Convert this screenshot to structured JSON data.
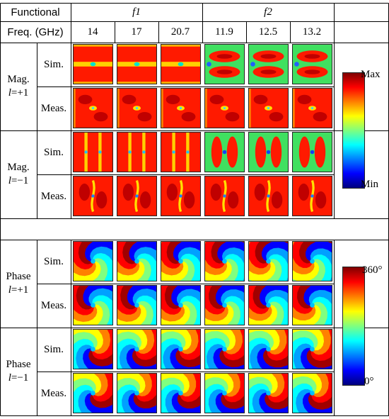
{
  "header": {
    "functional_label": "Functional",
    "freq_label": "Freq. (GHz)",
    "groups": [
      "f1",
      "f2"
    ],
    "frequencies": [
      "14",
      "17",
      "20.7",
      "11.9",
      "12.5",
      "13.2"
    ]
  },
  "rows": {
    "sim": "Sim.",
    "meas": "Meas."
  },
  "sections": [
    {
      "title": "Mag.",
      "mode_prefix": "l",
      "mode_value": "=+1"
    },
    {
      "title": "Mag.",
      "mode_prefix": "l",
      "mode_value": "=−1"
    },
    {
      "title": "Phase",
      "mode_prefix": "l",
      "mode_value": "=+1"
    },
    {
      "title": "Phase",
      "mode_prefix": "l",
      "mode_value": "=−1"
    }
  ],
  "colorbars": {
    "magnitude": {
      "max": "Max",
      "min": "Min"
    },
    "phase": {
      "max": "360°",
      "min": "0°"
    }
  },
  "colors": {
    "jet_stops": [
      "#00007f",
      "#0000ff",
      "#007fff",
      "#00ffff",
      "#7fff7f",
      "#ffff00",
      "#ff7f00",
      "#ff0000",
      "#7f0000"
    ]
  }
}
